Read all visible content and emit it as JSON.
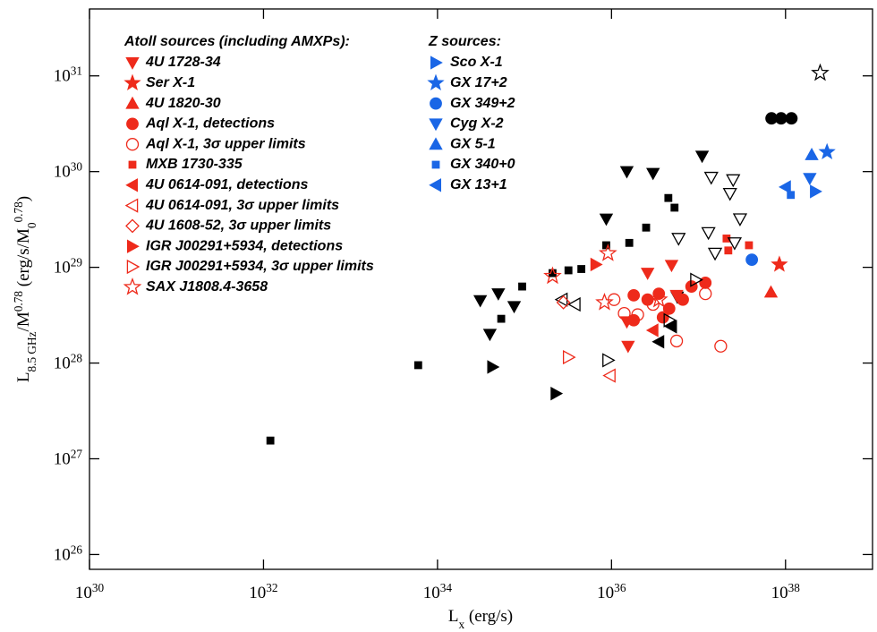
{
  "chart_data": {
    "type": "scatter",
    "x_label": "L_{x} (erg/s)",
    "y_label": "L_{8.5 GHz}/M^{0.78} (erg/s/M_{0}^{0.78})",
    "log_x": true,
    "log_y": true,
    "xlim": [
      1e+30,
      1e+39
    ],
    "ylim": [
      7e+25,
      5e+31
    ],
    "xticks": [
      {
        "value": 1e+30,
        "label": "10^{30}"
      },
      {
        "value": 1e+32,
        "label": "10^{32}"
      },
      {
        "value": 1e+34,
        "label": "10^{34}"
      },
      {
        "value": 1e+36,
        "label": "10^{36}"
      },
      {
        "value": 1e+38,
        "label": "10^{38}"
      }
    ],
    "yticks": [
      {
        "value": 1e+26,
        "label": "10^{26}"
      },
      {
        "value": 1e+27,
        "label": "10^{27}"
      },
      {
        "value": 1e+28,
        "label": "10^{28}"
      },
      {
        "value": 1e+29,
        "label": "10^{29}"
      },
      {
        "value": 1e+30,
        "label": "10^{30}"
      },
      {
        "value": 1e+31,
        "label": "10^{31}"
      }
    ],
    "groups": [
      {
        "title": "Atoll sources (including AMXPs):",
        "series": [
          {
            "name": "4U 1728-34",
            "marker": "triangle-down",
            "filled": true,
            "color": "#ee2a1b",
            "subsets": [
              {
                "color": "#000000",
                "x": [
                  3.1e+34,
                  5e+34,
                  7.6e+34,
                  4e+34,
                  8.7e+35,
                  1.5e+36,
                  3e+36,
                  1.1e+37,
                  5.7e+36
                ],
                "values": [
                  4.5e+28,
                  5.3e+28,
                  3.9e+28,
                  2e+28,
                  3.2e+29,
                  1e+30,
                  9.6e+29,
                  1.45e+30,
                  4.9e+28
                ]
              },
              {
                "color": "#ee2a1b",
                "x": [
                  2.6e+36,
                  4.9e+36,
                  1.5e+36,
                  1.55e+36,
                  5.6e+36
                ],
                "values": [
                  8.7e+28,
                  1.05e+29,
                  2.7e+28,
                  1.5e+28,
                  5.1e+28
                ]
              }
            ]
          },
          {
            "name": "Ser X-1",
            "marker": "star",
            "filled": true,
            "color": "#ee2a1b",
            "subsets": [
              {
                "color": "#ee2a1b",
                "x": [
                  8.5e+37
                ],
                "values": [
                  1.07e+29
                ]
              }
            ]
          },
          {
            "name": "4U 1820-30",
            "marker": "triangle-up",
            "filled": true,
            "color": "#ee2a1b",
            "subsets": [
              {
                "color": "#ee2a1b",
                "x": [
                  6.8e+37
                ],
                "values": [
                  5.5e+28
                ]
              }
            ]
          },
          {
            "name": "Aql X-1, detections",
            "marker": "circle",
            "filled": true,
            "color": "#ee2a1b",
            "subsets": [
              {
                "color": "#ee2a1b",
                "x": [
                  1.8e+36,
                  2.6e+36,
                  3.5e+36,
                  4.6e+36,
                  6.6e+36,
                  8.3e+36,
                  1.2e+37,
                  3.9e+36,
                  1.8e+36
                ],
                "values": [
                  5.1e+28,
                  4.6e+28,
                  5.3e+28,
                  3.7e+28,
                  4.6e+28,
                  6.3e+28,
                  6.9e+28,
                  3e+28,
                  2.8e+28
                ]
              },
              {
                "color": "#000000",
                "x": [
                  6.9e+37,
                  8.9e+37,
                  1.17e+38
                ],
                "values": [
                  3.6e+30,
                  3.6e+30,
                  3.6e+30
                ]
              }
            ]
          },
          {
            "name": "Aql X-1, 3σ upper limits",
            "marker": "circle",
            "filled": false,
            "color": "#ee2a1b",
            "subsets": [
              {
                "color": "#ee2a1b",
                "x": [
                  1.4e+36,
                  2e+36,
                  3e+36,
                  1.07e+36,
                  5.6e+36,
                  1.8e+37,
                  1.2e+37
                ],
                "values": [
                  3.3e+28,
                  3.2e+28,
                  4.1e+28,
                  4.6e+28,
                  1.7e+28,
                  1.5e+28,
                  5.3e+28
                ]
              }
            ]
          },
          {
            "name": "MXB 1730-335",
            "marker": "square",
            "filled": true,
            "color": "#ee2a1b",
            "subsets": [
              {
                "color": "#000000",
                "x": [
                  1.2e+32,
                  6e+33,
                  5.4e+34,
                  9.4e+34,
                  2.1e+35,
                  3.2e+35,
                  4.5e+35,
                  8.7e+35,
                  1.6e+36,
                  2.5e+36,
                  4.5e+36,
                  5.3e+36
                ],
                "values": [
                  1.55e+27,
                  9.5e+27,
                  2.9e+28,
                  6.3e+28,
                  8.7e+28,
                  9.3e+28,
                  9.6e+28,
                  1.7e+29,
                  1.8e+29,
                  2.6e+29,
                  5.3e+29,
                  4.2e+29
                ]
              },
              {
                "color": "#ee2a1b",
                "x": [
                  2.1e+37,
                  2.2e+37,
                  3.8e+37
                ],
                "values": [
                  2e+29,
                  1.5e+29,
                  1.7e+29
                ]
              }
            ]
          },
          {
            "name": "4U 0614-091, detections",
            "marker": "triangle-left",
            "filled": true,
            "color": "#ee2a1b",
            "subsets": [
              {
                "color": "#000000",
                "x": [
                  3.5e+36,
                  4.9e+36
                ],
                "values": [
                  1.67e+28,
                  2.4e+28
                ]
              },
              {
                "color": "#ee2a1b",
                "x": [
                  3e+36
                ],
                "values": [
                  2.2e+28
                ]
              }
            ]
          },
          {
            "name": "4U 0614-091, 3σ upper limits",
            "marker": "triangle-left",
            "filled": false,
            "color": "#ee2a1b",
            "subsets": [
              {
                "color": "#ee2a1b",
                "x": [
                  9.6e+35
                ],
                "values": [
                  7.4e+27
                ]
              },
              {
                "color": "#000000",
                "x": [
                  2.7e+35,
                  3.8e+35
                ],
                "values": [
                  4.6e+28,
                  4.1e+28
                ]
              }
            ]
          },
          {
            "name": "4U 1608-52, 3σ upper limits",
            "marker": "diamond",
            "filled": false,
            "color": "#ee2a1b",
            "subsets": [
              {
                "color": "#ee2a1b",
                "x": [
                  2.8e+35
                ],
                "values": [
                  4.3e+28
                ]
              }
            ]
          },
          {
            "name": "IGR J00291+5934, detections",
            "marker": "triangle-right",
            "filled": true,
            "color": "#ee2a1b",
            "subsets": [
              {
                "color": "#ee2a1b",
                "x": [
                  6.6e+35
                ],
                "values": [
                  1.07e+29
                ]
              },
              {
                "color": "#000000",
                "x": [
                  4.3e+34,
                  2.3e+35
                ],
                "values": [
                  9.1e+27,
                  4.8e+27
                ]
              }
            ]
          },
          {
            "name": "IGR J00291+5934, 3σ upper limits",
            "marker": "triangle-right",
            "filled": false,
            "color": "#ee2a1b",
            "subsets": [
              {
                "color": "#ee2a1b",
                "x": [
                  3.2e+35
                ],
                "values": [
                  1.15e+28
                ]
              },
              {
                "color": "#000000",
                "x": [
                  9.1e+35,
                  4.6e+36,
                  9.3e+36
                ],
                "values": [
                  1.07e+28,
                  2.8e+28,
                  7.4e+28
                ]
              }
            ]
          },
          {
            "name": "SAX J1808.4-3658",
            "marker": "star",
            "filled": false,
            "color": "#ee2a1b",
            "subsets": [
              {
                "color": "#ee2a1b",
                "x": [
                  2.1e+35,
                  8.3e+35,
                  9.1e+35,
                  3.5e+36
                ],
                "values": [
                  8.1e+28,
                  4.3e+28,
                  1.4e+29,
                  4.6e+28
                ]
              },
              {
                "color": "#000000",
                "x": [
                  2.5e+38
                ],
                "values": [
                  1.07e+31
                ]
              }
            ]
          }
        ]
      },
      {
        "title": "Z sources:",
        "series": [
          {
            "name": "Sco X-1",
            "marker": "triangle-right",
            "filled": true,
            "color": "#1a66e6",
            "subsets": [
              {
                "color": "#1a66e6",
                "x": [
                  2.2e+38
                ],
                "values": [
                  6.2e+29
                ]
              }
            ]
          },
          {
            "name": "GX 17+2",
            "marker": "star",
            "filled": true,
            "color": "#1a66e6",
            "subsets": [
              {
                "color": "#1a66e6",
                "x": [
                  3e+38
                ],
                "values": [
                  1.6e+30
                ]
              }
            ]
          },
          {
            "name": "GX 349+2",
            "marker": "circle",
            "filled": true,
            "color": "#1a66e6",
            "subsets": [
              {
                "color": "#1a66e6",
                "x": [
                  4.1e+37
                ],
                "values": [
                  1.2e+29
                ]
              }
            ]
          },
          {
            "name": "Cyg X-2",
            "marker": "triangle-down",
            "filled": true,
            "color": "#1a66e6",
            "subsets": [
              {
                "color": "#1a66e6",
                "x": [
                  1.9e+38
                ],
                "values": [
                  8.5e+29
                ]
              },
              {
                "color": "#000000",
                "filled": false,
                "x": [
                  1.4e+37,
                  2.5e+37,
                  2.3e+37,
                  3e+37,
                  1.3e+37,
                  1.55e+37,
                  2.6e+37,
                  5.9e+36
                ],
                "values": [
                  8.7e+29,
                  8.2e+29,
                  5.9e+29,
                  3.2e+29,
                  2.3e+29,
                  1.4e+29,
                  1.8e+29,
                  2e+29
                ]
              }
            ]
          },
          {
            "name": "GX 5-1",
            "marker": "triangle-up",
            "filled": true,
            "color": "#1a66e6",
            "subsets": [
              {
                "color": "#1a66e6",
                "x": [
                  2e+38
                ],
                "values": [
                  1.5e+30
                ]
              }
            ]
          },
          {
            "name": "GX 340+0",
            "marker": "square",
            "filled": true,
            "color": "#1a66e6",
            "subsets": [
              {
                "color": "#1a66e6",
                "x": [
                  1.15e+38
                ],
                "values": [
                  5.7e+29
                ]
              }
            ]
          },
          {
            "name": "GX 13+1",
            "marker": "triangle-left",
            "filled": true,
            "color": "#1a66e6",
            "subsets": [
              {
                "color": "#1a66e6",
                "x": [
                  1e+38
                ],
                "values": [
                  6.9e+29
                ]
              }
            ]
          }
        ]
      }
    ]
  }
}
